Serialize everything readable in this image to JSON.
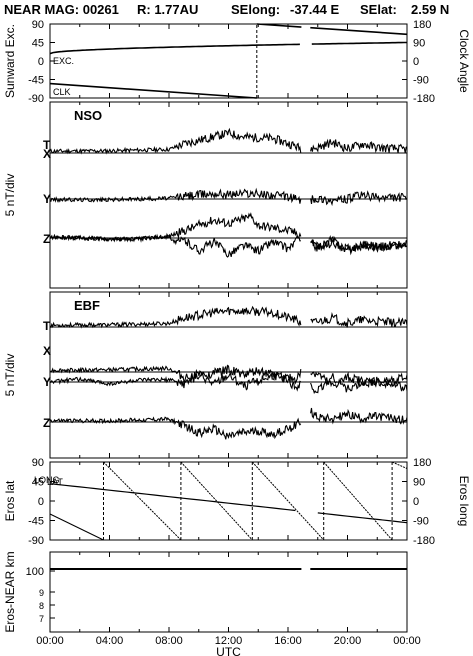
{
  "header": {
    "title": "NEAR MAG: 00261",
    "distance": "R: 1.77AU",
    "selong_label": "SElong:",
    "selong_value": "-37.44 E",
    "selat_label": "SElat:",
    "selat_value": "2.59 N"
  },
  "chart_data": [
    {
      "type": "line",
      "title": "",
      "ylabel": "Sunward Exc.",
      "y2label": "Clock Angle",
      "ylim": [
        -90,
        90
      ],
      "y2lim": [
        -180,
        180
      ],
      "yticks": [
        "90",
        "45",
        "0",
        "-45",
        "-90"
      ],
      "y2ticks": [
        "180",
        "90",
        "0",
        "-90",
        "-180"
      ],
      "annotations": [
        "EXC.",
        "CLK"
      ],
      "series": [
        {
          "name": "EXC.",
          "x": [
            0,
            24
          ],
          "y": [
            18,
            45
          ]
        },
        {
          "name": "CLK",
          "x": [
            0,
            13.9,
            13.9,
            24
          ],
          "y": [
            -110,
            -180,
            180,
            130
          ]
        }
      ]
    },
    {
      "type": "line",
      "title": "NSO",
      "ylabel": "5 nT/div",
      "annotations": [
        "T",
        "X",
        "Y",
        "Z"
      ],
      "series": [
        {
          "name": "T",
          "x": [
            0,
            4,
            8,
            9,
            11,
            12,
            13,
            15,
            16.5,
            17,
            18,
            19,
            20,
            21,
            22,
            24
          ],
          "y": [
            0.5,
            0.6,
            1.0,
            2.5,
            4.5,
            5.5,
            4.5,
            4.0,
            2.0,
            0.8,
            1.5,
            3.0,
            1.2,
            2.5,
            1.5,
            1.0
          ]
        },
        {
          "name": "X",
          "x": [
            0,
            4,
            8,
            9,
            11,
            12,
            13,
            15,
            16.5,
            17,
            18,
            19,
            20,
            21,
            22,
            24
          ],
          "y": [
            -0.2,
            -0.2,
            0.2,
            0.8,
            1.6,
            1.3,
            1.7,
            1.1,
            0.3,
            -0.8,
            0.2,
            -0.5,
            0.0,
            1.2,
            0.3,
            0.5
          ]
        },
        {
          "name": "Y",
          "x": [
            0,
            2,
            4,
            6,
            8,
            8.5,
            10,
            11,
            12,
            13.5,
            14,
            15.5,
            16.5,
            17.5,
            18,
            19,
            20,
            21,
            22,
            24
          ],
          "y": [
            0.3,
            0.0,
            -0.3,
            -0.2,
            0.5,
            1.2,
            3.5,
            5.0,
            4.0,
            6.0,
            3.5,
            2.5,
            1.5,
            -0.5,
            -3.0,
            -1.5,
            -3.0,
            -2.0,
            -2.5,
            -1.5
          ]
        },
        {
          "name": "Z",
          "x": [
            0,
            2,
            4,
            6,
            8,
            8.5,
            9,
            10,
            11,
            12,
            13,
            14,
            15,
            16,
            17,
            17.3,
            18,
            19,
            20,
            21,
            22,
            24
          ],
          "y": [
            0.2,
            0.0,
            -0.2,
            -0.3,
            0.5,
            -1.5,
            -0.5,
            -3.5,
            -1.0,
            -4.5,
            -2.0,
            -3.5,
            -1.0,
            -3.0,
            1.0,
            -1.0,
            -2.5,
            -0.5,
            -3.5,
            -1.5,
            -2.5,
            -2.0
          ]
        }
      ]
    },
    {
      "type": "line",
      "title": "EBF",
      "ylabel": "5 nT/div",
      "annotations": [
        "T",
        "X",
        "Y",
        "Z"
      ],
      "series": [
        {
          "name": "T",
          "x": [
            0,
            4,
            8,
            9,
            11,
            12,
            13,
            15,
            16.5,
            17,
            18,
            19,
            20,
            21,
            22,
            24
          ],
          "y": [
            0.5,
            0.6,
            1.0,
            2.5,
            4.0,
            4.5,
            4.5,
            4.0,
            2.0,
            0.8,
            1.5,
            2.5,
            1.0,
            2.0,
            1.5,
            1.0
          ]
        },
        {
          "name": "X",
          "x": [
            0,
            4,
            8,
            9,
            10,
            11,
            12,
            13,
            14,
            15,
            16.5,
            17,
            18,
            19,
            20,
            21,
            22,
            24
          ],
          "y": [
            0.5,
            0.6,
            1.0,
            -1.5,
            -0.5,
            -3.5,
            -1.0,
            -4.0,
            -2.5,
            -1.0,
            -2.0,
            0.5,
            -0.5,
            -4.0,
            -1.5,
            -2.5,
            -3.0,
            -1.5
          ]
        },
        {
          "name": "Y",
          "x": [
            0,
            2,
            4,
            6,
            8,
            9,
            10,
            11,
            12,
            13,
            14,
            15,
            16,
            16.5,
            17,
            18,
            19,
            20,
            21,
            22,
            24
          ],
          "y": [
            0.0,
            0.8,
            -0.5,
            0.5,
            0.6,
            -0.5,
            1.5,
            2.5,
            3.5,
            2.0,
            3.0,
            2.0,
            0.5,
            -1.5,
            0.5,
            -2.5,
            1.5,
            -2.0,
            -0.5,
            0.5,
            -2.0
          ]
        },
        {
          "name": "Z",
          "x": [
            0,
            4,
            8,
            9,
            10,
            11,
            12,
            13,
            14,
            15,
            16,
            17,
            17.3,
            18,
            19,
            20,
            21,
            22,
            24
          ],
          "y": [
            0.4,
            0.3,
            0.8,
            -1.0,
            -3.0,
            -2.0,
            -4.0,
            -3.0,
            -2.5,
            -3.5,
            -2.0,
            0.5,
            3.5,
            1.5,
            1.0,
            2.0,
            1.0,
            1.5,
            0.5
          ]
        }
      ]
    },
    {
      "type": "line",
      "ylabel": "Eros lat",
      "y2label": "Eros long",
      "ylim": [
        -90,
        90
      ],
      "y2lim": [
        -180,
        180
      ],
      "yticks": [
        "90",
        "45",
        "0",
        "-45",
        "-90"
      ],
      "y2ticks": [
        "180",
        "90",
        "0",
        "-90",
        "-180"
      ],
      "annotations": [
        "LONG",
        "LAT"
      ],
      "series": [
        {
          "name": "LAT",
          "x": [
            0,
            24
          ],
          "y": [
            40,
            -50
          ]
        },
        {
          "name": "LONG",
          "x": [
            0,
            3.6,
            3.6,
            8.8,
            8.8,
            13.6,
            13.6,
            18.4,
            18.4,
            23,
            23,
            24
          ],
          "y": [
            -60,
            -180,
            180,
            -180,
            180,
            -180,
            180,
            -180,
            180,
            -180,
            180,
            150
          ]
        }
      ]
    },
    {
      "type": "line",
      "ylabel": "Eros-NEAR km",
      "xlabel": "UTC",
      "yscale": "log",
      "yticks": [
        "100",
        "9",
        "8",
        "7"
      ],
      "xticks": [
        "00:00",
        "04:00",
        "08:00",
        "12:00",
        "16:00",
        "20:00",
        "00:00"
      ],
      "xlim": [
        0,
        24
      ],
      "series": [
        {
          "name": "Eros-NEAR km",
          "x": [
            0,
            24
          ],
          "y": [
            104,
            104
          ]
        }
      ]
    }
  ]
}
